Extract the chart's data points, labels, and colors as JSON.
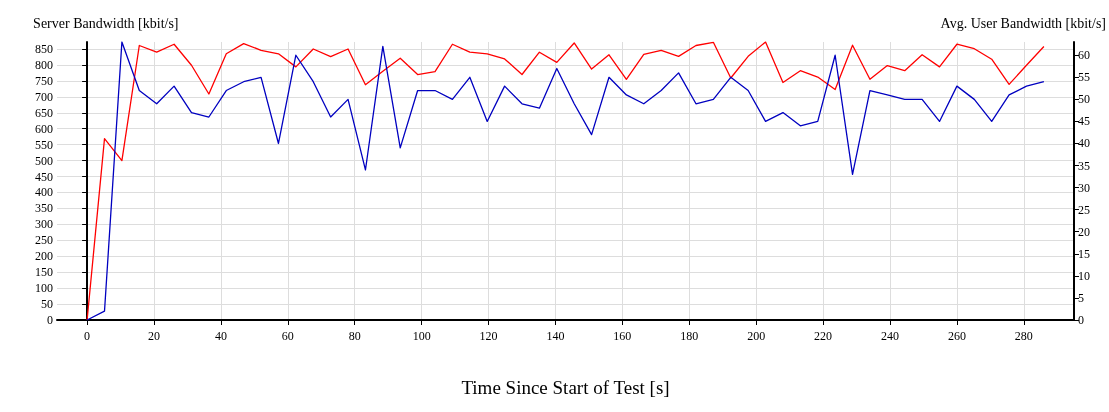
{
  "chart_data": {
    "type": "line",
    "ylabel": "Server Bandwidth [kbit/s]",
    "y2label": "Avg. User Bandwidth [kbit/s]",
    "xlabel": "Time Since Start of Test [s]",
    "x": [
      0,
      5.2,
      10.4,
      15.6,
      20.8,
      26,
      31.2,
      36.4,
      41.6,
      46.8,
      52,
      57.2,
      62.4,
      67.6,
      72.8,
      78,
      83.2,
      88.4,
      93.6,
      98.8,
      104,
      109.2,
      114.4,
      119.6,
      124.8,
      130,
      135.2,
      140.4,
      145.6,
      150.8,
      156,
      161.2,
      166.4,
      171.6,
      176.8,
      182,
      187.2,
      192.4,
      197.6,
      202.8,
      208,
      213.2,
      218.4,
      223.6,
      228.8,
      234,
      239.2,
      244.4,
      249.6,
      254.8,
      260,
      265.2,
      270.4,
      275.6,
      280.8,
      286
    ],
    "series": [
      {
        "color": "#ff0000",
        "values": [
          0,
          569,
          500,
          861,
          840,
          865,
          799,
          709,
          835,
          867,
          846,
          835,
          794,
          850,
          826,
          850,
          738,
          780,
          821,
          770,
          779,
          865,
          840,
          835,
          819,
          770,
          840,
          808,
          869,
          787,
          832,
          755,
          833,
          846,
          827,
          861,
          871,
          759,
          827,
          872,
          745,
          782,
          762,
          723,
          862,
          755,
          798,
          782,
          832,
          794,
          865,
          851,
          818,
          739,
          799,
          858
        ]
      },
      {
        "color": "#0000c0",
        "axis": "y2",
        "values": [
          0,
          2,
          63,
          52,
          49,
          53,
          47,
          46,
          52,
          54,
          55,
          40,
          60,
          54,
          46,
          50,
          34,
          62,
          39,
          52,
          52,
          50,
          55,
          45,
          53,
          49,
          48,
          57,
          49,
          42,
          55,
          51,
          49,
          52,
          56,
          49,
          50,
          55,
          52,
          45,
          47,
          44,
          45,
          60,
          33,
          52,
          51,
          50,
          50,
          45,
          53,
          50,
          45,
          51,
          53,
          54
        ]
      }
    ],
    "xlim": [
      -9,
      295
    ],
    "xticks": [
      0,
      20,
      40,
      60,
      80,
      100,
      120,
      140,
      160,
      180,
      200,
      220,
      240,
      260,
      280
    ],
    "ylim": [
      0,
      872
    ],
    "yticks": [
      0,
      50,
      100,
      150,
      200,
      250,
      300,
      350,
      400,
      450,
      500,
      550,
      600,
      650,
      700,
      750,
      800,
      850
    ],
    "y2lim": [
      0,
      63
    ],
    "y2ticks": [
      0,
      5,
      10,
      15,
      20,
      25,
      30,
      35,
      40,
      45,
      50,
      55,
      60
    ],
    "grid": true,
    "marker": "none",
    "line_style": "solid"
  }
}
